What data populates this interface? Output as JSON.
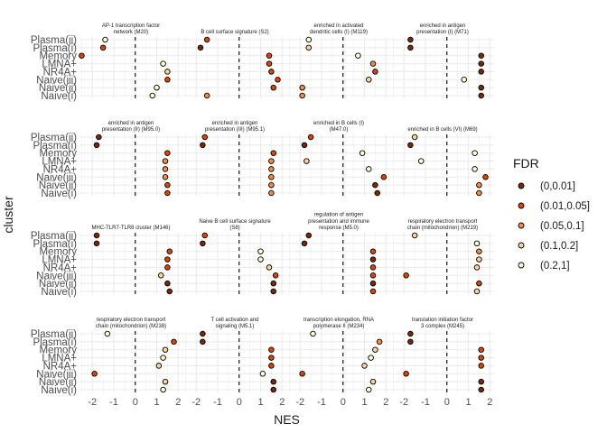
{
  "chart_data": {
    "type": "scatter",
    "xlabel": "NES",
    "ylabel": "cluster",
    "xlim": [
      -2.6,
      2.2
    ],
    "x_ticks": [
      -2,
      -1,
      0,
      1,
      2
    ],
    "x_tick_labels": [
      "-2",
      "-1",
      "0",
      "1",
      "2"
    ],
    "reference_line_x": 0,
    "categories": [
      "Plasma(ii)",
      "Plasma(i)",
      "Memory",
      "LMNA+",
      "NR4A+",
      "Naive(iii)",
      "Naive(ii)",
      "Naive(i)"
    ],
    "grid": true,
    "legend": {
      "title": "FDR",
      "position": "right",
      "levels": [
        "(0,0.01]",
        "(0.01,0.05]",
        "(0.05,0.1]",
        "(0.1,0.2]",
        "(0.2,1]"
      ],
      "colors": [
        "#7f2704",
        "#d94801",
        "#fd8d3c",
        "#fdd49e",
        "#ffffd4"
      ]
    },
    "panels": [
      {
        "title": [
          "AP-1 transcription factor",
          "network (M20)"
        ],
        "points": [
          [
            -1.4,
            4
          ],
          [
            -1.5,
            1
          ],
          [
            -2.5,
            1
          ],
          [
            1.3,
            4
          ],
          [
            1.5,
            3
          ],
          [
            1.5,
            1
          ],
          [
            1.0,
            4
          ],
          [
            0.8,
            4
          ]
        ]
      },
      {
        "title": [
          "B cell surface signature (S2)"
        ],
        "points": [
          [
            -1.5,
            1
          ],
          [
            -1.8,
            0
          ],
          [
            1.4,
            1
          ],
          [
            1.4,
            1
          ],
          [
            1.5,
            1
          ],
          [
            1.8,
            1
          ],
          [
            1.6,
            1
          ],
          [
            -1.5,
            2
          ]
        ]
      },
      {
        "title": [
          "enriched in activated",
          "dendritic cells (I) (M119)"
        ],
        "points": [
          [
            -1.6,
            4
          ],
          [
            -1.6,
            3
          ],
          [
            0.7,
            4
          ],
          [
            1.4,
            2
          ],
          [
            1.5,
            1
          ],
          [
            1.2,
            3
          ],
          [
            -1.9,
            2
          ],
          [
            -1.9,
            2
          ]
        ]
      },
      {
        "title": [
          "enriched in antigen",
          "presentation (I) (M71)"
        ],
        "points": [
          [
            -1.7,
            0
          ],
          [
            -1.7,
            0
          ],
          [
            1.6,
            0
          ],
          [
            1.6,
            0
          ],
          [
            1.6,
            0
          ],
          [
            0.8,
            4
          ],
          [
            1.6,
            0
          ],
          [
            1.6,
            0
          ]
        ]
      },
      {
        "title": [
          "enriched in antigen",
          "presentation (II) (M95.0)"
        ],
        "points": [
          [
            -1.7,
            0
          ],
          [
            -1.8,
            0
          ],
          [
            1.5,
            1
          ],
          [
            1.4,
            2
          ],
          [
            1.4,
            2
          ],
          [
            1.4,
            2
          ],
          [
            1.5,
            1
          ],
          [
            1.5,
            1
          ]
        ]
      },
      {
        "title": [
          "enriched in antigen",
          "presentation (III) (M95.1)"
        ],
        "points": [
          [
            -1.6,
            1
          ],
          [
            -1.7,
            0
          ],
          [
            1.6,
            1
          ],
          [
            1.5,
            2
          ],
          [
            1.5,
            2
          ],
          [
            1.5,
            2
          ],
          [
            1.5,
            2
          ],
          [
            1.5,
            2
          ]
        ]
      },
      {
        "title": [
          "enriched in B cells (I)",
          "(M47.0)"
        ],
        "points": [
          [
            -1.5,
            1
          ],
          [
            -1.8,
            0
          ],
          [
            0.9,
            4
          ],
          [
            -1.7,
            3
          ],
          [
            1.2,
            4
          ],
          [
            1.9,
            1
          ],
          [
            1.5,
            0
          ],
          [
            1.6,
            0
          ]
        ]
      },
      {
        "title": [
          "enriched in B cells (VI) (M69)"
        ],
        "points": [
          [
            -1.5,
            3
          ],
          [
            -1.7,
            0
          ],
          [
            1.3,
            4
          ],
          [
            -1.2,
            4
          ],
          [
            1.3,
            4
          ],
          [
            1.8,
            1
          ],
          [
            1.5,
            2
          ],
          [
            1.5,
            2
          ]
        ]
      },
      {
        "title": [
          "MHC-TLR7-TLR8 cluster (M146)"
        ],
        "points": [
          [
            -1.8,
            0
          ],
          [
            -1.8,
            0
          ],
          [
            1.6,
            1
          ],
          [
            1.5,
            1
          ],
          [
            1.5,
            1
          ],
          [
            1.2,
            3
          ],
          [
            1.5,
            0
          ],
          [
            1.6,
            0
          ]
        ]
      },
      {
        "title": [
          "Naive B cell surface signature",
          "(S8)"
        ],
        "points": [
          [
            -1.6,
            1
          ],
          [
            -1.7,
            0
          ],
          [
            1.0,
            4
          ],
          [
            1.0,
            4
          ],
          [
            1.4,
            3
          ],
          [
            1.7,
            1
          ],
          [
            1.6,
            0
          ],
          [
            1.6,
            0
          ]
        ]
      },
      {
        "title": [
          "regulation of antigen",
          "presentation and immune",
          "response (M5.0)"
        ],
        "points": [
          [
            -1.6,
            0
          ],
          [
            -1.8,
            0
          ],
          [
            1.4,
            1
          ],
          [
            1.4,
            0
          ],
          [
            1.4,
            1
          ],
          [
            1.4,
            1
          ],
          [
            1.4,
            0
          ],
          [
            1.4,
            1
          ]
        ]
      },
      {
        "title": [
          "respiratory electron transport",
          "chain (mitochondrion) (M219)"
        ],
        "points": [
          [
            -1.5,
            3
          ],
          [
            1.4,
            4
          ],
          [
            1.5,
            2
          ],
          [
            1.5,
            3
          ],
          [
            1.4,
            3
          ],
          [
            -1.9,
            1
          ],
          [
            1.5,
            1
          ],
          [
            1.4,
            3
          ]
        ]
      },
      {
        "title": [
          "respiratory electron transport",
          "chain (mitochondrion) (M238)"
        ],
        "points": [
          [
            -1.3,
            4
          ],
          [
            1.8,
            1
          ],
          [
            1.4,
            3
          ],
          [
            1.3,
            4
          ],
          [
            1.1,
            3
          ],
          [
            -1.9,
            1
          ],
          [
            1.4,
            3
          ],
          [
            1.3,
            4
          ]
        ]
      },
      {
        "title": [
          "T cell activation and",
          "signaling (M5.1)"
        ],
        "points": [
          [
            -1.7,
            0
          ],
          [
            -1.7,
            0
          ],
          [
            1.5,
            1
          ],
          [
            1.5,
            1
          ],
          [
            1.5,
            1
          ],
          [
            1.1,
            4
          ],
          [
            1.6,
            0
          ],
          [
            1.6,
            0
          ]
        ]
      },
      {
        "title": [
          "transcription elongation, RNA",
          "polymerase II (M234)"
        ],
        "points": [
          [
            -1.4,
            4
          ],
          [
            1.7,
            2
          ],
          [
            1.5,
            3
          ],
          [
            1.3,
            4
          ],
          [
            1.0,
            3
          ],
          [
            -1.9,
            1
          ],
          [
            1.4,
            3
          ],
          [
            1.2,
            4
          ]
        ]
      },
      {
        "title": [
          "translation initiation factor",
          "3 complex (M245)"
        ],
        "points": [
          [
            -1.7,
            0
          ],
          [
            -1.7,
            0
          ],
          [
            1.6,
            1
          ],
          [
            1.6,
            1
          ],
          [
            1.6,
            1
          ],
          [
            -1.9,
            1
          ],
          [
            1.6,
            0
          ],
          [
            1.6,
            0
          ]
        ]
      }
    ]
  }
}
